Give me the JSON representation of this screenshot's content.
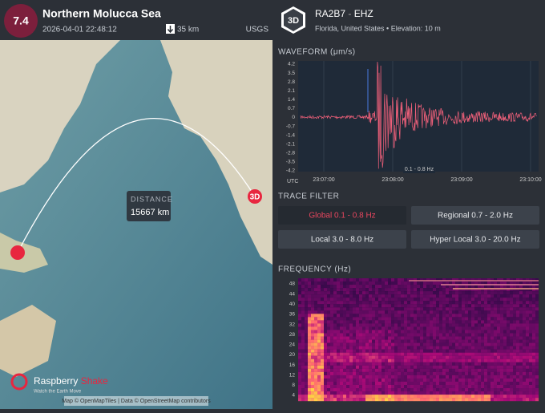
{
  "event": {
    "magnitude": "7.4",
    "title": "Northern Molucca Sea",
    "datetime": "2026-04-01 22:48:12",
    "depth": "35 km",
    "source": "USGS"
  },
  "map": {
    "distance_label": "DISTANCE",
    "distance": "15667 km",
    "station_marker": "3D",
    "logo_name": "Raspberry",
    "logo_name2": "Shake",
    "logo_tagline": "Watch the Earth Move",
    "attribution": "Map © OpenMapTiles | Data © OpenStreetMap contributors"
  },
  "station": {
    "badge": "3D",
    "code": "RA2B7",
    "separator": "-",
    "channel": "EHZ",
    "location": "Florida, United States • Elevation: 10 m"
  },
  "waveform": {
    "title": "WAVEFORM (μm/s)",
    "yticks": [
      "4.2",
      "3.5",
      "2.8",
      "2.1",
      "1.4",
      "0.7",
      "0",
      "-0.7",
      "-1.4",
      "-2.1",
      "-2.8",
      "-3.5",
      "-4.2"
    ],
    "xticks": [
      "23:07:00",
      "23:08:00",
      "23:09:00",
      "23:10:00"
    ],
    "utc": "UTC",
    "filter_label": "0.1 - 0.8 Hz"
  },
  "trace_filter": {
    "title": "TRACE FILTER",
    "buttons": [
      "Global 0.1 - 0.8 Hz",
      "Regional 0.7 - 2.0 Hz",
      "Local 3.0 - 8.0 Hz",
      "Hyper Local 3.0 - 20.0 Hz"
    ]
  },
  "frequency": {
    "title": "FREQUENCY (Hz)",
    "yticks": [
      "48",
      "44",
      "40",
      "36",
      "32",
      "28",
      "24",
      "20",
      "16",
      "12",
      "8",
      "4"
    ]
  }
}
